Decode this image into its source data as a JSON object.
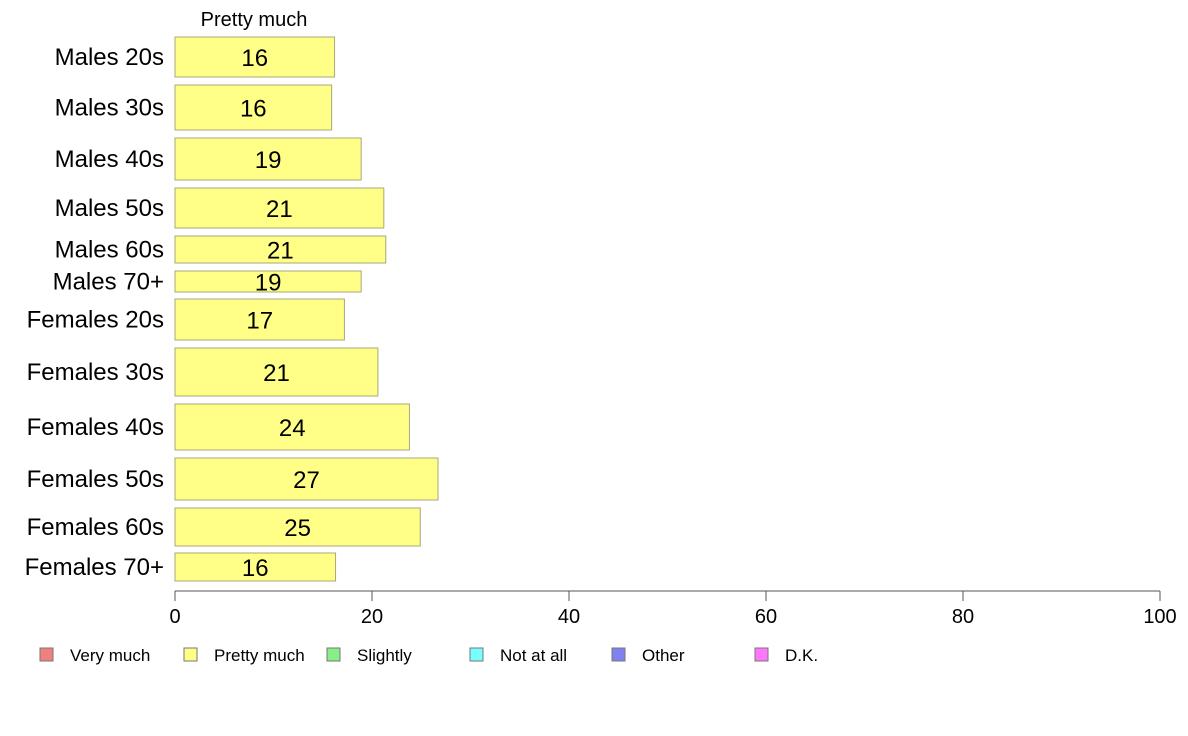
{
  "chart_data": {
    "type": "bar",
    "orientation": "horizontal",
    "stacked": true,
    "top_label": "Pretty much",
    "categories": [
      "Males 20s",
      "Males 30s",
      "Males 40s",
      "Males 50s",
      "Males 60s",
      "Males 70+",
      "Females 20s",
      "Females 30s",
      "Females 40s",
      "Females 50s",
      "Females 60s",
      "Females 70+"
    ],
    "series": [
      {
        "name": "Pretty much",
        "color": "#ffff88",
        "values": [
          16.2,
          15.9,
          18.9,
          21.2,
          21.4,
          18.9,
          17.2,
          20.6,
          23.8,
          26.7,
          24.9,
          16.3
        ],
        "labels": [
          "16",
          "16",
          "19",
          "21",
          "21",
          "19",
          "17",
          "21",
          "24",
          "27",
          "25",
          "16"
        ]
      }
    ],
    "xlim": [
      0,
      100
    ],
    "xticks": [
      0,
      20,
      40,
      60,
      80,
      100
    ],
    "grid": false,
    "legend_position": "bottom",
    "legend": [
      {
        "label": "Very much",
        "color": "#f08080"
      },
      {
        "label": "Pretty much",
        "color": "#ffff88"
      },
      {
        "label": "Slightly",
        "color": "#88ee88"
      },
      {
        "label": "Not at all",
        "color": "#77ffff"
      },
      {
        "label": "Other",
        "color": "#8080ee"
      },
      {
        "label": "D.K.",
        "color": "#ff77ff"
      }
    ]
  }
}
